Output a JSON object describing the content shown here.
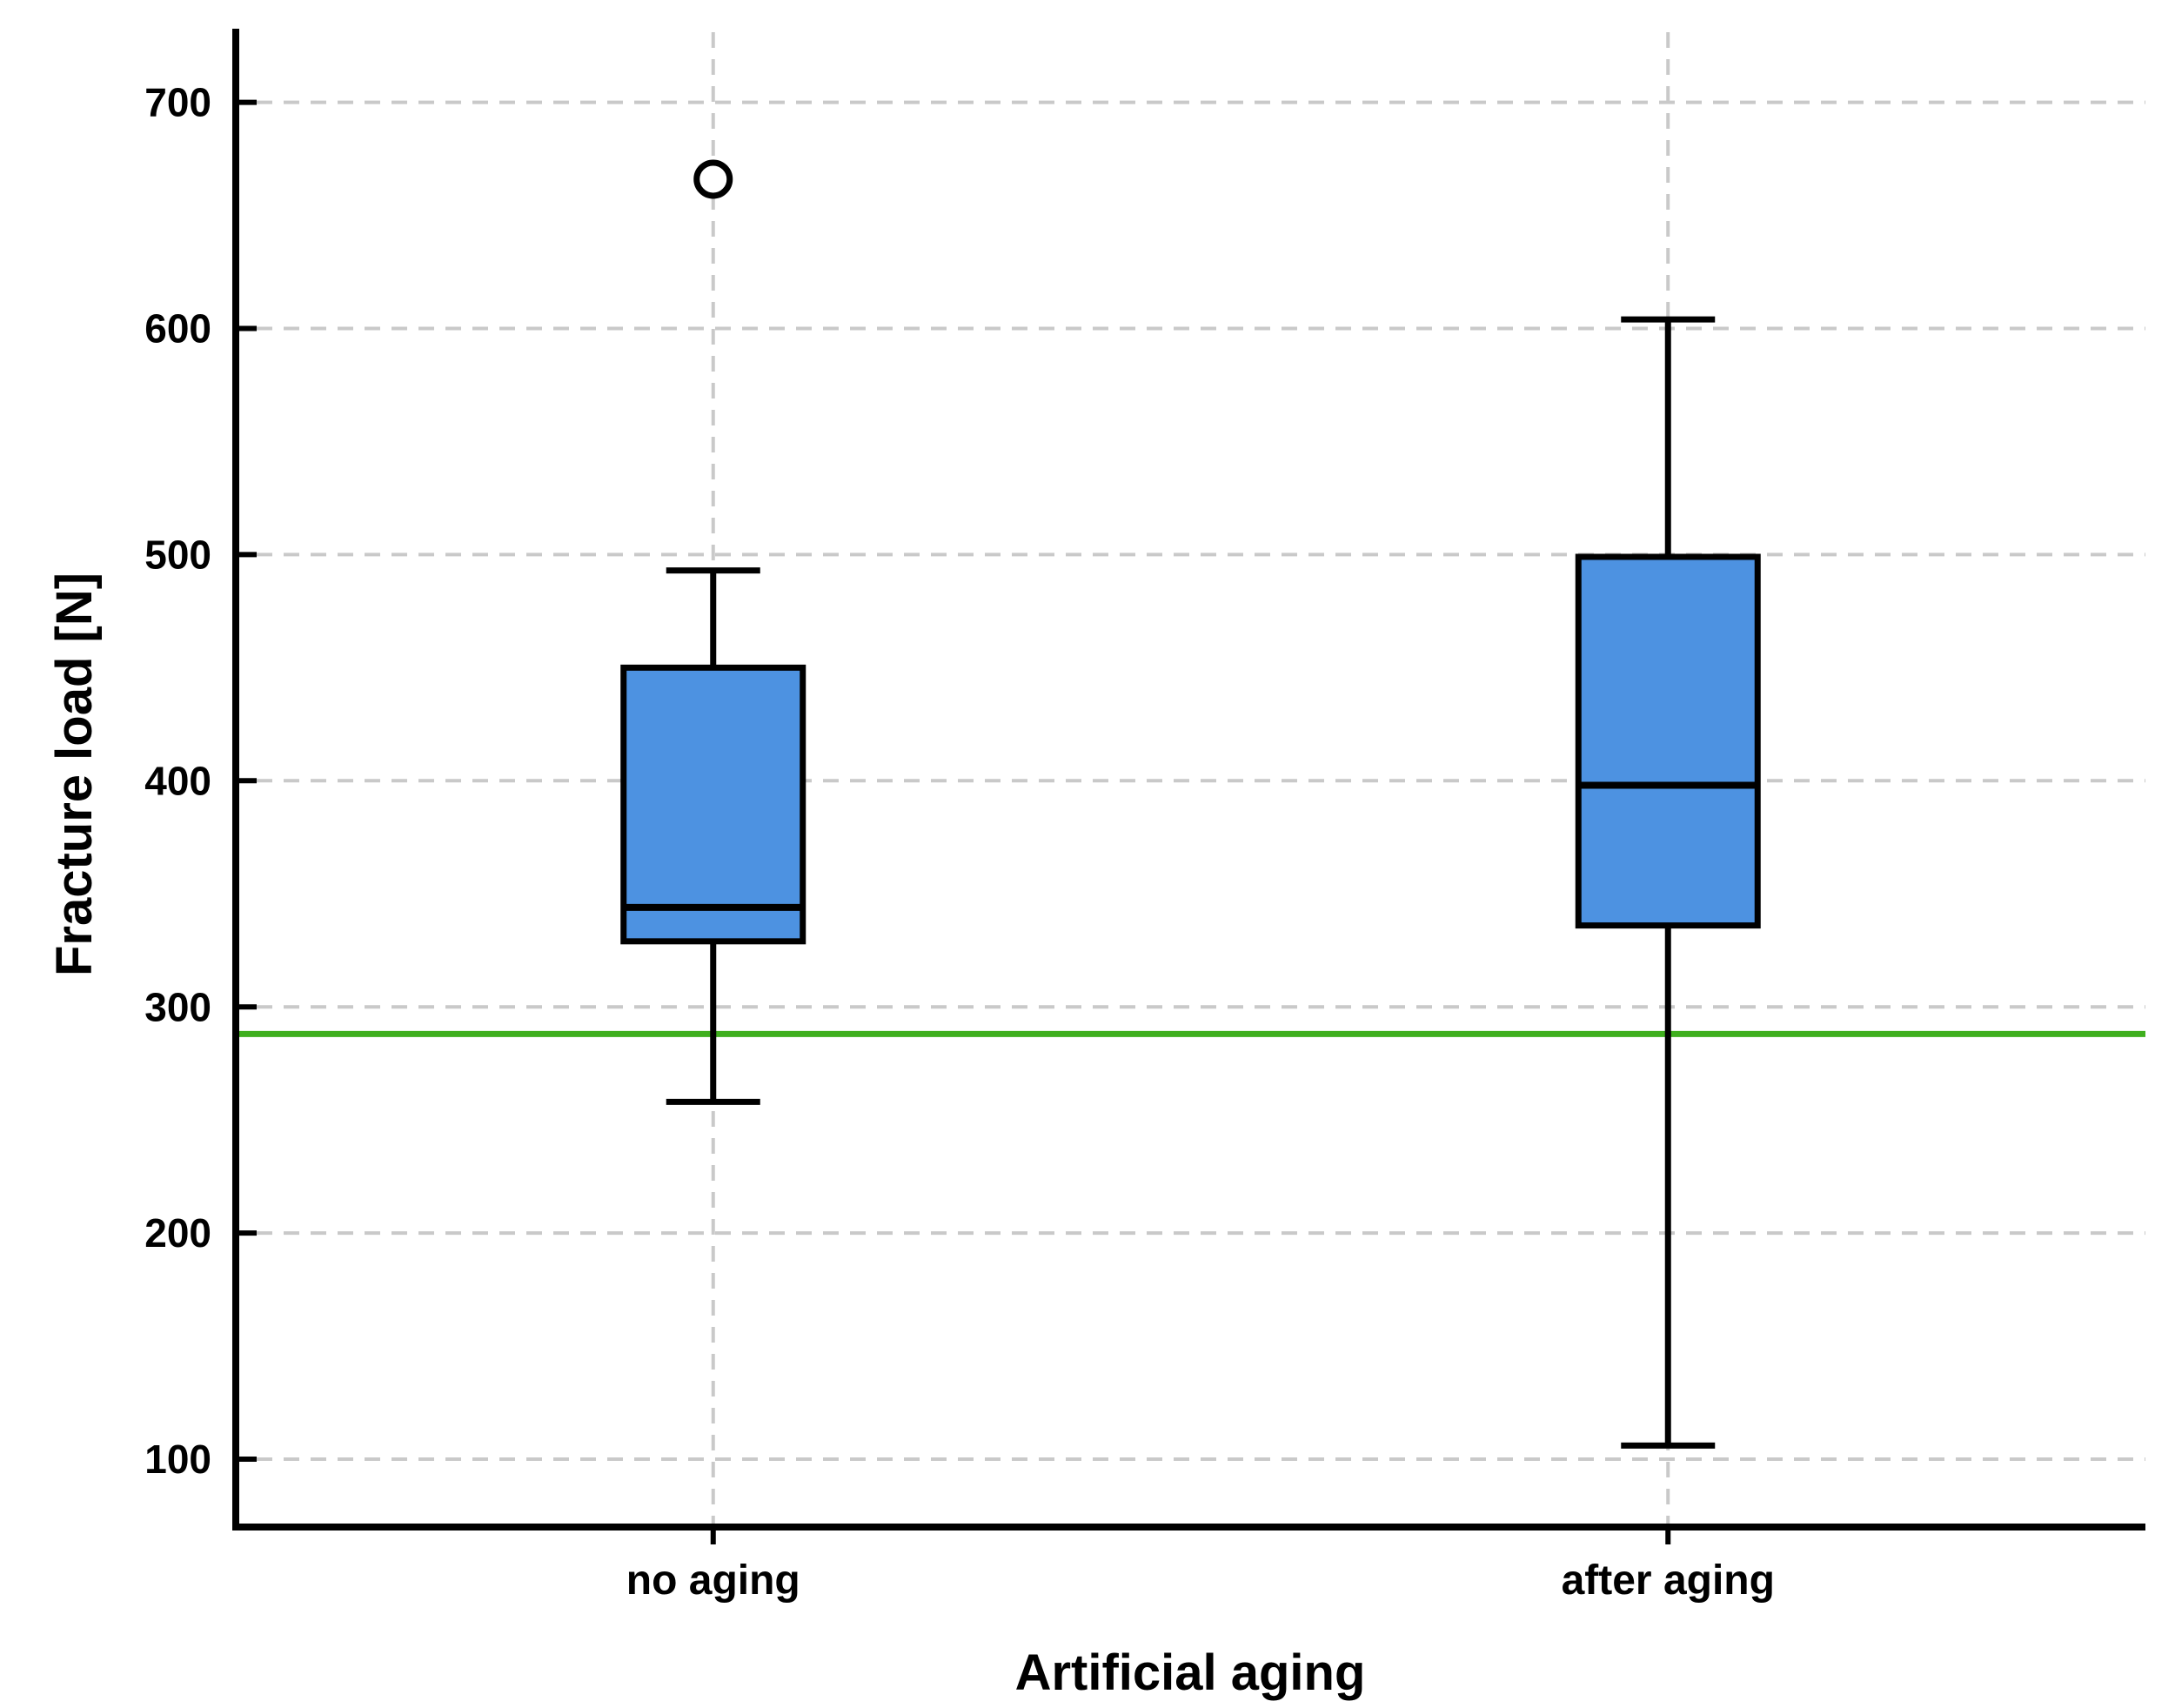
{
  "chart_data": {
    "type": "boxplot",
    "title": "",
    "xlabel": "Artificial aging",
    "ylabel": "Fracture load [N]",
    "categories": [
      "no aging",
      "after aging"
    ],
    "ylim": [
      70,
      731
    ],
    "yticks": [
      100,
      200,
      300,
      400,
      500,
      600,
      700
    ],
    "grid": "dashed horizontal gridlines at each ytick and dashed vertical line at each category; gridlines on, legend none",
    "series": [
      {
        "category": "no aging",
        "whisker_low": 258,
        "q1": 329,
        "median": 344,
        "q3": 450,
        "whisker_high": 493,
        "outliers": [
          666
        ]
      },
      {
        "category": "after aging",
        "whisker_low": 106,
        "q1": 336,
        "median": 398,
        "q3": 499,
        "whisker_high": 604,
        "outliers": []
      }
    ],
    "reference_line": {
      "value": 288,
      "color": "#3FAF1E"
    }
  },
  "colors": {
    "background": "#FFFFFF",
    "box_fill": "#4D92E1",
    "box_stroke": "#000000",
    "whisker": "#000000",
    "median": "#000000",
    "axis": "#000000",
    "grid": "#C9C9C9",
    "reference": "#3FAF1E",
    "outlier_fill": "#FFFFFF",
    "text": "#000000"
  }
}
